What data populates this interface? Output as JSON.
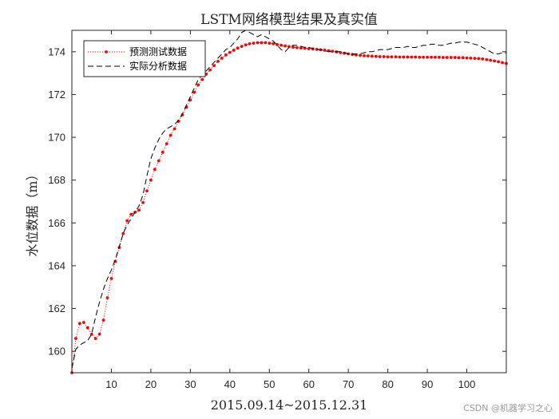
{
  "chart_data": {
    "type": "line",
    "title": "LSTM网络模型结果及真实值",
    "xlabel": "2015.09.14~2015.12.31",
    "ylabel": "水位数据（m）",
    "xlim": [
      0,
      110
    ],
    "ylim": [
      159,
      175
    ],
    "xticks": [
      10,
      20,
      30,
      40,
      50,
      60,
      70,
      80,
      90,
      100
    ],
    "yticks": [
      160,
      162,
      164,
      166,
      168,
      170,
      172,
      174
    ],
    "grid": false,
    "legend_position": "top-left",
    "series": [
      {
        "name": "预测测试数据",
        "color": "#ff0000",
        "style": "dotted-with-markers",
        "x": [
          0,
          1,
          2,
          3,
          4,
          5,
          6,
          7,
          8,
          9,
          10,
          11,
          12,
          13,
          14,
          15,
          16,
          17,
          18,
          19,
          20,
          21,
          22,
          23,
          24,
          25,
          26,
          27,
          28,
          29,
          30,
          31,
          32,
          33,
          34,
          35,
          36,
          37,
          38,
          39,
          40,
          41,
          42,
          43,
          44,
          45,
          46,
          47,
          48,
          49,
          50,
          51,
          52,
          53,
          54,
          55,
          56,
          57,
          58,
          59,
          60,
          61,
          62,
          63,
          64,
          65,
          66,
          67,
          68,
          69,
          70,
          71,
          72,
          73,
          74,
          75,
          76,
          77,
          78,
          79,
          80,
          81,
          82,
          83,
          84,
          85,
          86,
          87,
          88,
          89,
          90,
          91,
          92,
          93,
          94,
          95,
          96,
          97,
          98,
          99,
          100,
          101,
          102,
          103,
          104,
          105,
          106,
          107,
          108,
          109,
          110
        ],
        "values": [
          159.0,
          160.6,
          161.3,
          161.35,
          161.1,
          160.8,
          160.6,
          160.8,
          161.45,
          162.5,
          163.4,
          164.2,
          164.85,
          165.5,
          166.1,
          166.4,
          166.5,
          166.6,
          166.95,
          167.5,
          168.0,
          168.5,
          168.9,
          169.3,
          169.7,
          170.1,
          170.4,
          170.75,
          171.05,
          171.4,
          171.75,
          172.1,
          172.45,
          172.7,
          172.95,
          173.15,
          173.35,
          173.55,
          173.7,
          173.85,
          173.97,
          174.07,
          174.17,
          174.25,
          174.32,
          174.37,
          174.4,
          174.42,
          174.42,
          174.42,
          174.4,
          174.37,
          174.33,
          174.3,
          174.27,
          174.24,
          174.21,
          174.19,
          174.17,
          174.16,
          174.14,
          174.13,
          174.11,
          174.09,
          174.07,
          174.05,
          174.02,
          173.99,
          173.96,
          173.93,
          173.9,
          173.87,
          173.85,
          173.83,
          173.81,
          173.8,
          173.79,
          173.78,
          173.77,
          173.77,
          173.76,
          173.76,
          173.76,
          173.75,
          173.75,
          173.75,
          173.75,
          173.75,
          173.74,
          173.74,
          173.74,
          173.74,
          173.74,
          173.74,
          173.73,
          173.73,
          173.73,
          173.73,
          173.72,
          173.72,
          173.71,
          173.7,
          173.69,
          173.68,
          173.66,
          173.63,
          173.6,
          173.57,
          173.53,
          173.49,
          173.45
        ]
      },
      {
        "name": "实际分析数据",
        "color": "#000000",
        "style": "dashed",
        "x": [
          0,
          1,
          2,
          3,
          4,
          5,
          6,
          7,
          8,
          9,
          10,
          11,
          12,
          13,
          14,
          15,
          16,
          17,
          18,
          19,
          20,
          21,
          22,
          23,
          24,
          25,
          26,
          27,
          28,
          29,
          30,
          31,
          32,
          33,
          34,
          35,
          36,
          37,
          38,
          39,
          40,
          41,
          42,
          43,
          44,
          45,
          46,
          47,
          48,
          49,
          50,
          51,
          52,
          53,
          54,
          55,
          56,
          57,
          58,
          59,
          60,
          61,
          62,
          63,
          64,
          65,
          66,
          67,
          68,
          69,
          70,
          71,
          72,
          73,
          74,
          75,
          76,
          77,
          78,
          79,
          80,
          81,
          82,
          83,
          84,
          85,
          86,
          87,
          88,
          89,
          90,
          91,
          92,
          93,
          94,
          95,
          96,
          97,
          98,
          99,
          100,
          101,
          102,
          103,
          104,
          105,
          106,
          107,
          108,
          109,
          110
        ],
        "values": [
          159.2,
          160.1,
          160.3,
          160.4,
          160.5,
          160.8,
          161.6,
          162.3,
          162.9,
          163.4,
          163.8,
          164.3,
          164.9,
          165.5,
          165.9,
          166.2,
          166.5,
          166.8,
          167.3,
          168.2,
          169.0,
          169.5,
          169.9,
          170.2,
          170.4,
          170.5,
          170.6,
          170.8,
          171.1,
          171.5,
          171.9,
          172.3,
          172.7,
          172.9,
          173.1,
          173.3,
          173.5,
          173.7,
          173.9,
          174.1,
          174.2,
          174.4,
          174.6,
          174.9,
          175.0,
          174.9,
          174.8,
          174.7,
          174.8,
          174.7,
          174.6,
          174.5,
          174.3,
          174.1,
          174.0,
          174.2,
          174.3,
          174.3,
          174.25,
          174.2,
          174.2,
          174.15,
          174.1,
          174.1,
          174.05,
          174.0,
          174.0,
          174.0,
          174.0,
          173.95,
          173.9,
          173.9,
          173.9,
          173.9,
          173.95,
          174.0,
          174.0,
          174.05,
          174.1,
          174.1,
          174.1,
          174.15,
          174.2,
          174.2,
          174.2,
          174.25,
          174.2,
          174.2,
          174.25,
          174.3,
          174.3,
          174.35,
          174.35,
          174.3,
          174.3,
          174.35,
          174.4,
          174.4,
          174.45,
          174.45,
          174.45,
          174.4,
          174.35,
          174.3,
          174.2,
          174.1,
          174.0,
          173.9,
          173.9,
          173.95,
          173.95
        ]
      }
    ]
  },
  "watermark": "CSDN @机器学习之心"
}
